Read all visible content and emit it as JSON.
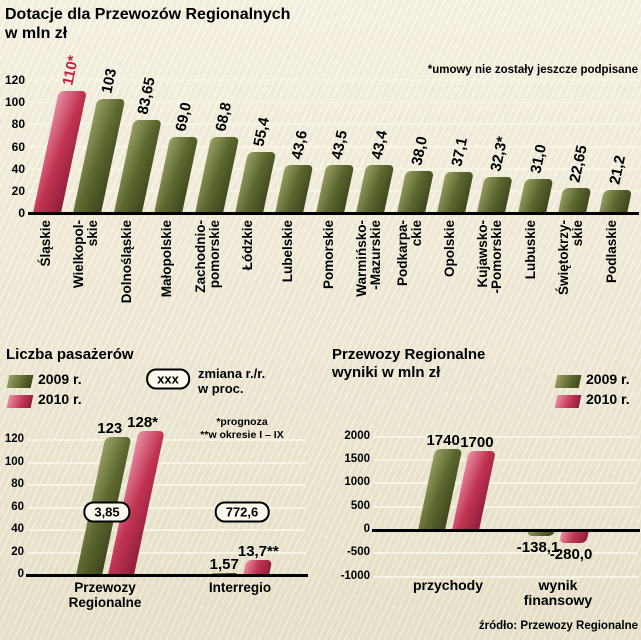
{
  "meta": {
    "title_line1": "Dotacje dla Przewozów Regionalnych",
    "title_line2": "w mln zł",
    "source": "źródło: Przewozy Regionalne"
  },
  "colors": {
    "green": "#5d672f",
    "red": "#c23353",
    "highlight_value": "#c41f3e",
    "grid": "#f8f4e4",
    "axis": "#000000",
    "background": "#efe8d1"
  },
  "chart_data": [
    {
      "id": "subsidies",
      "type": "bar",
      "title": "Dotacje dla Przewozów Regionalnych w mln zł",
      "footnote": "*umowy nie zostały jeszcze podpisane",
      "categories": [
        "Śląskie",
        "Wielkopolskie",
        "Dolnośląskie",
        "Małopolskie",
        "Zachodniopomorskie",
        "Łódzkie",
        "Lubelskie",
        "Pomorskie",
        "Warmińsko-Mazurskie",
        "Podkarpackie",
        "Opolskie",
        "Kujawsko-Pomorskie",
        "Lubuskie",
        "Świętokrzyskie",
        "Podlaskie"
      ],
      "category_display": [
        "Śląskie",
        "Wielkopol-\nskie",
        "Dolnośląskie",
        "Małopolskie",
        "Zachodnio-\npomorskie",
        "Łódzkie",
        "Lubelskie",
        "Pomorskie",
        "Warmińsko-\n-Mazurskie",
        "Podkarpa-\nckie",
        "Opolskie",
        "Kujawsko-\n-Pomorskie",
        "Lubuskie",
        "Świętokrzy-\nskie",
        "Podlaskie"
      ],
      "values": [
        110,
        103,
        83.65,
        69.0,
        68.8,
        55.4,
        43.6,
        43.5,
        43.4,
        38.0,
        37.1,
        32.3,
        31.0,
        22.65,
        21.2
      ],
      "labels": [
        "110*",
        "103",
        "83,65",
        "69,0",
        "68,8",
        "55,4",
        "43,6",
        "43,5",
        "43,4",
        "38,0",
        "37,1",
        "32,3*",
        "31,0",
        "22,65",
        "21,2"
      ],
      "highlight_index": 0,
      "ylim": [
        0,
        120
      ],
      "yticks": [
        0,
        20,
        40,
        60,
        80,
        100,
        120
      ],
      "grid": true
    },
    {
      "id": "passengers",
      "type": "grouped-bar",
      "title": "Liczba pasażerów",
      "legend": [
        "2009 r.",
        "2010 r."
      ],
      "legend_note_badge": "xxx",
      "legend_note_text": "zmiana r./r.\nw proc.",
      "note": "*prognoza\n**w okresie I – IX",
      "groups": [
        {
          "label": "Przewozy\nRegionalne",
          "values": [
            123,
            128
          ],
          "labels": [
            "123",
            "128*"
          ],
          "change": "3,85"
        },
        {
          "label": "Interregio",
          "values": [
            1.57,
            13.7
          ],
          "labels": [
            "1,57",
            "13,7**"
          ],
          "change": "772,6"
        }
      ],
      "series_names": [
        "2009 r.",
        "2010 r."
      ],
      "ylim": [
        0,
        130
      ],
      "yticks": [
        0,
        20,
        40,
        60,
        80,
        100,
        120
      ],
      "grid": true
    },
    {
      "id": "results",
      "type": "grouped-bar",
      "title": "Przewozy Regionalne\nwyniki w mln zł",
      "legend": [
        "2009 r.",
        "2010 r."
      ],
      "groups": [
        {
          "label": "przychody",
          "values": [
            1740,
            1700
          ],
          "labels": [
            "1740",
            "1700"
          ]
        },
        {
          "label": "wynik\nfinansowy",
          "values": [
            -138.1,
            -280.0
          ],
          "labels": [
            "-138,1",
            "-280,0"
          ]
        }
      ],
      "series_names": [
        "2009 r.",
        "2010 r."
      ],
      "ylim": [
        -1000,
        2000
      ],
      "yticks": [
        -1000,
        -500,
        0,
        500,
        1000,
        1500,
        2000
      ],
      "grid": true
    }
  ]
}
